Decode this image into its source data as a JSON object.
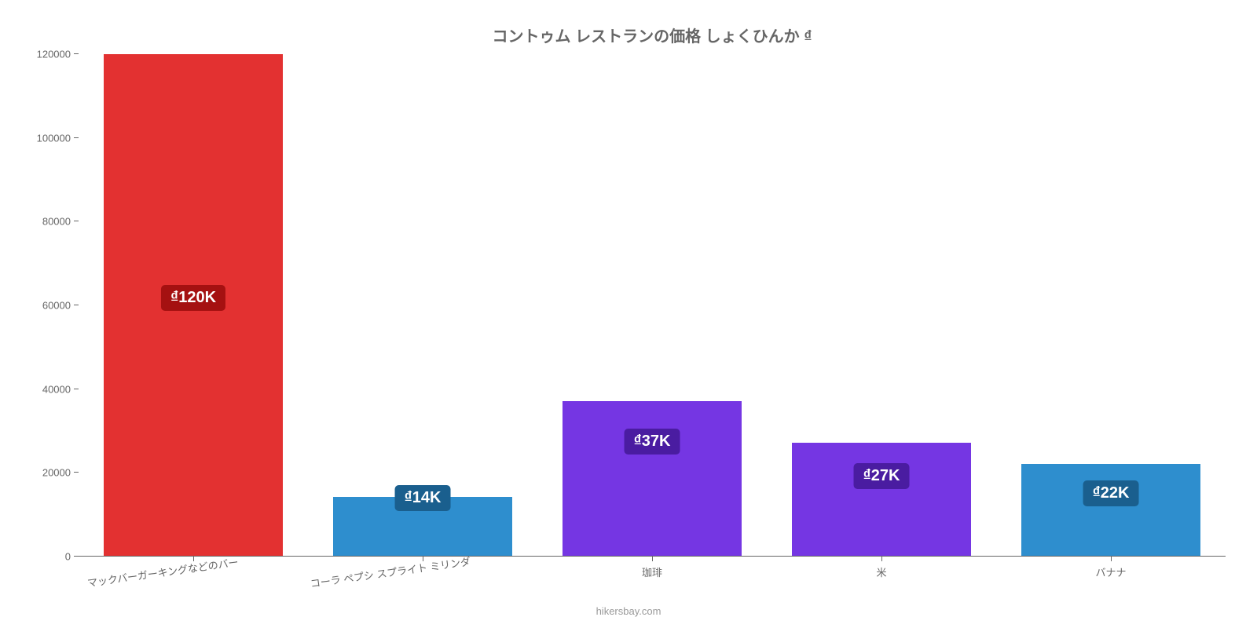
{
  "chart": {
    "type": "bar",
    "title": "コントゥム レストランの価格 しょくひんか ₫",
    "title_fontsize": 20,
    "title_color": "#666666",
    "background_color": "#ffffff",
    "axis_color": "#666666",
    "label_fontsize": 13,
    "ylim": [
      0,
      120000
    ],
    "ytick_step": 20000,
    "yticks": [
      0,
      20000,
      40000,
      60000,
      80000,
      100000,
      120000
    ],
    "bar_width": 0.78,
    "attribution": "hikersbay.com",
    "categories": [
      "マックバーガーキングなどのバー",
      "コーラ ペプシ スプライト ミリンダ",
      "珈琲",
      "米",
      "バナナ"
    ],
    "values": [
      120000,
      14000,
      37000,
      27000,
      22000
    ],
    "bar_colors": [
      "#e33131",
      "#2e8ece",
      "#7536e3",
      "#7536e3",
      "#2e8ece"
    ],
    "value_labels": [
      "₫120K",
      "₫14K",
      "₫37K",
      "₫27K",
      "₫22K"
    ],
    "badge_bg_colors": [
      "#a51111",
      "#1a5f8e",
      "#4a1ca1",
      "#4a1ca1",
      "#1a5f8e"
    ],
    "badge_fontsize": 20,
    "label_offsets_pct": [
      55,
      -4,
      28,
      20,
      10
    ]
  }
}
